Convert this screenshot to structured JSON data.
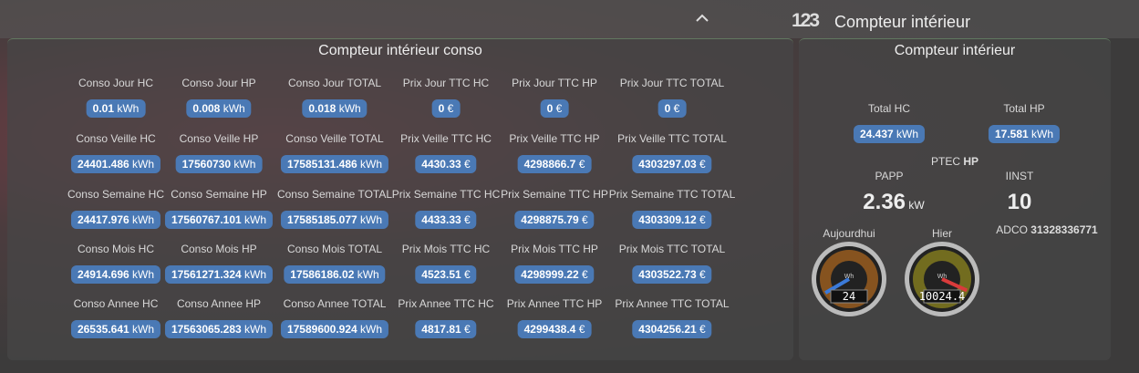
{
  "header": {
    "icon": "123",
    "title": "Compteur intérieur"
  },
  "conso": {
    "title": "Compteur intérieur conso",
    "rows": [
      [
        {
          "label": "Conso Jour HC",
          "value": "0.01",
          "unit": "kWh"
        },
        {
          "label": "Conso Jour HP",
          "value": "0.008",
          "unit": "kWh"
        },
        {
          "label": "Conso Jour TOTAL",
          "value": "0.018",
          "unit": "kWh"
        },
        {
          "label": "Prix Jour TTC HC",
          "value": "0",
          "unit": "€"
        },
        {
          "label": "Prix Jour TTC HP",
          "value": "0",
          "unit": "€"
        },
        {
          "label": "Prix Jour TTC TOTAL",
          "value": "0",
          "unit": "€"
        }
      ],
      [
        {
          "label": "Conso Veille HC",
          "value": "24401.486",
          "unit": "kWh"
        },
        {
          "label": "Conso Veille HP",
          "value": "17560730",
          "unit": "kWh"
        },
        {
          "label": "Conso Veille TOTAL",
          "value": "17585131.486",
          "unit": "kWh"
        },
        {
          "label": "Prix Veille TTC HC",
          "value": "4430.33",
          "unit": "€"
        },
        {
          "label": "Prix Veille TTC HP",
          "value": "4298866.7",
          "unit": "€"
        },
        {
          "label": "Prix Veille TTC TOTAL",
          "value": "4303297.03",
          "unit": "€"
        }
      ],
      [
        {
          "label": "Conso Semaine HC",
          "value": "24417.976",
          "unit": "kWh"
        },
        {
          "label": "Conso Semaine HP",
          "value": "17560767.101",
          "unit": "kWh"
        },
        {
          "label": "Conso Semaine TOTAL",
          "value": "17585185.077",
          "unit": "kWh"
        },
        {
          "label": "Prix Semaine TTC HC",
          "value": "4433.33",
          "unit": "€"
        },
        {
          "label": "Prix Semaine TTC HP",
          "value": "4298875.79",
          "unit": "€"
        },
        {
          "label": "Prix Semaine TTC TOTAL",
          "value": "4303309.12",
          "unit": "€"
        }
      ],
      [
        {
          "label": "Conso Mois HC",
          "value": "24914.696",
          "unit": "kWh"
        },
        {
          "label": "Conso Mois HP",
          "value": "17561271.324",
          "unit": "kWh"
        },
        {
          "label": "Conso Mois TOTAL",
          "value": "17586186.02",
          "unit": "kWh"
        },
        {
          "label": "Prix Mois TTC HC",
          "value": "4523.51",
          "unit": "€"
        },
        {
          "label": "Prix Mois TTC HP",
          "value": "4298999.22",
          "unit": "€"
        },
        {
          "label": "Prix Mois TTC TOTAL",
          "value": "4303522.73",
          "unit": "€"
        }
      ],
      [
        {
          "label": "Conso Annee HC",
          "value": "26535.641",
          "unit": "kWh"
        },
        {
          "label": "Conso Annee HP",
          "value": "17563065.283",
          "unit": "kWh"
        },
        {
          "label": "Conso Annee TOTAL",
          "value": "17589600.924",
          "unit": "kWh"
        },
        {
          "label": "Prix Annee TTC HC",
          "value": "4817.81",
          "unit": "€"
        },
        {
          "label": "Prix Annee TTC HP",
          "value": "4299438.4",
          "unit": "€"
        },
        {
          "label": "Prix Annee TTC TOTAL",
          "value": "4304256.21",
          "unit": "€"
        }
      ]
    ]
  },
  "compteur": {
    "title": "Compteur intérieur",
    "totals": [
      {
        "label": "Total HC",
        "value": "24.437",
        "unit": "kWh"
      },
      {
        "label": "Total HP",
        "value": "17.581",
        "unit": "kWh"
      }
    ],
    "ptec": {
      "label": "PTEC",
      "value": "HP"
    },
    "papp": {
      "label": "PAPP",
      "value": "2.36",
      "unit": "kW"
    },
    "iinst": {
      "label": "IINST",
      "value": "10"
    },
    "adco": {
      "label": "ADCO",
      "value": "31328336771"
    },
    "gauges": [
      {
        "label": "Aujourdhui",
        "value": "24",
        "unit": "Wh"
      },
      {
        "label": "Hier",
        "value": "10024.4",
        "unit": "Wh"
      }
    ]
  }
}
